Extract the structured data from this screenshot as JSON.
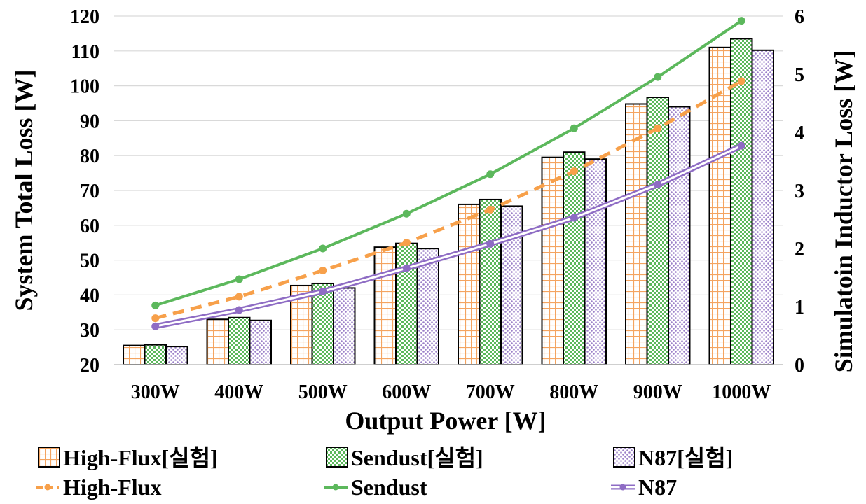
{
  "chart_data": {
    "type": "bar+line",
    "categories": [
      "300W",
      "400W",
      "500W",
      "600W",
      "700W",
      "800W",
      "900W",
      "1000W"
    ],
    "xlabel": "Output Power [W]",
    "ylabel": "System Total Loss [W]",
    "y2label": "Simulatoin Inductor Loss [W]",
    "ylim": [
      20,
      120
    ],
    "yticks": [
      20,
      30,
      40,
      50,
      60,
      70,
      80,
      90,
      100,
      110,
      120
    ],
    "y2lim": [
      0,
      6
    ],
    "y2ticks": [
      0,
      1,
      2,
      3,
      4,
      5,
      6
    ],
    "grid": "horizontal",
    "bar_series": [
      {
        "name": "High-Flux[실험]",
        "color": "#f4a460",
        "pattern": "grid",
        "axis": "left",
        "values": [
          25.5,
          33.0,
          42.7,
          53.7,
          66.0,
          79.5,
          94.8,
          111.0
        ]
      },
      {
        "name": "Sendust[실험]",
        "color": "#5cb85c",
        "pattern": "checker",
        "axis": "left",
        "values": [
          25.7,
          33.5,
          43.3,
          54.8,
          67.4,
          81.0,
          96.7,
          113.5
        ]
      },
      {
        "name": "N87[실험]",
        "color": "#9b7fc8",
        "pattern": "dots",
        "axis": "left",
        "values": [
          25.2,
          32.7,
          42.0,
          53.3,
          65.5,
          79.0,
          94.0,
          110.2
        ]
      }
    ],
    "line_series": [
      {
        "name": "High-Flux",
        "color": "#f7a04a",
        "style": "dashed",
        "axis": "right",
        "values": [
          0.8,
          1.17,
          1.62,
          2.1,
          2.67,
          3.33,
          4.07,
          4.88
        ]
      },
      {
        "name": "Sendust",
        "color": "#5cb85c",
        "style": "solid",
        "axis": "right",
        "values": [
          1.02,
          1.47,
          2.0,
          2.6,
          3.28,
          4.07,
          4.95,
          5.92
        ]
      },
      {
        "name": "N87",
        "color": "#8e6cc4",
        "style": "double",
        "axis": "right",
        "values": [
          0.66,
          0.94,
          1.26,
          1.66,
          2.08,
          2.53,
          3.1,
          3.77
        ]
      }
    ]
  }
}
